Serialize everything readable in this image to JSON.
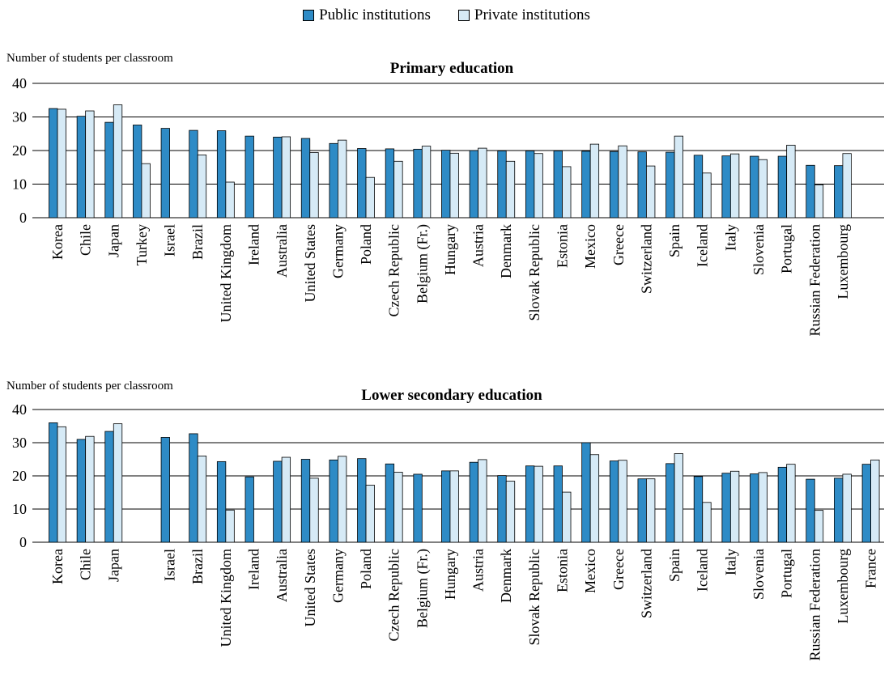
{
  "legend": {
    "public_label": "Public institutions",
    "private_label": "Private institutions"
  },
  "colors": {
    "public": "#2e8bc6",
    "private": "#d6eaf6",
    "stroke": "#000000"
  },
  "chart_data": [
    {
      "type": "bar",
      "title": "Primary education",
      "ylabel": "Number of students per classroom",
      "ylim": [
        0,
        40
      ],
      "yticks": [
        0,
        10,
        20,
        30,
        40
      ],
      "grid": true,
      "categories": [
        "Korea",
        "Chile",
        "Japan",
        "Turkey",
        "Israel",
        "Brazil",
        "United Kingdom",
        "Ireland",
        "Australia",
        "United States",
        "Germany",
        "Poland",
        "Czech Republic",
        "Belgium (Fr.)",
        "Hungary",
        "Austria",
        "Denmark",
        "Slovak Republic",
        "Estonia",
        "Mexico",
        "Greece",
        "Switzerland",
        "Spain",
        "Iceland",
        "Italy",
        "Slovenia",
        "Portugal",
        "Russian Federation",
        "Luxembourg"
      ],
      "series": [
        {
          "name": "Public institutions",
          "values": [
            32.5,
            30.2,
            28.4,
            27.6,
            26.6,
            26.0,
            25.9,
            24.3,
            24.0,
            23.6,
            22.1,
            20.6,
            20.5,
            20.4,
            20.1,
            20.0,
            19.9,
            19.9,
            19.9,
            19.8,
            19.7,
            19.6,
            19.5,
            18.6,
            18.4,
            18.3,
            18.3,
            15.6,
            15.5
          ]
        },
        {
          "name": "Private institutions",
          "values": [
            32.3,
            31.8,
            33.6,
            16.1,
            null,
            18.7,
            10.6,
            null,
            24.1,
            19.4,
            23.1,
            12.0,
            16.8,
            21.3,
            19.2,
            20.7,
            16.8,
            19.1,
            15.2,
            21.9,
            21.4,
            15.4,
            24.3,
            13.3,
            19.0,
            17.3,
            21.6,
            9.8,
            19.1
          ]
        }
      ]
    },
    {
      "type": "bar",
      "title": "Lower secondary education",
      "ylabel": "Number of students per classroom",
      "ylim": [
        0,
        40
      ],
      "yticks": [
        0,
        10,
        20,
        30,
        40
      ],
      "grid": true,
      "categories": [
        "Korea",
        "Chile",
        "Japan",
        "",
        "Israel",
        "Brazil",
        "United Kingdom",
        "Ireland",
        "Australia",
        "United States",
        "Germany",
        "Poland",
        "Czech Republic",
        "Belgium (Fr.)",
        "Hungary",
        "Austria",
        "Denmark",
        "Slovak Republic",
        "Estonia",
        "Mexico",
        "Greece",
        "Switzerland",
        "Spain",
        "Iceland",
        "Italy",
        "Slovenia",
        "Portugal",
        "Russian Federation",
        "Luxembourg",
        "France"
      ],
      "series": [
        {
          "name": "Public institutions",
          "values": [
            36.0,
            31.0,
            33.4,
            null,
            31.6,
            32.7,
            24.3,
            19.7,
            24.4,
            25.0,
            24.8,
            25.2,
            23.6,
            20.5,
            21.5,
            24.1,
            20.1,
            23.0,
            23.0,
            30.0,
            24.5,
            19.1,
            23.7,
            19.8,
            20.8,
            20.6,
            22.6,
            19.0,
            19.3,
            23.5
          ]
        },
        {
          "name": "Private institutions",
          "values": [
            34.8,
            31.9,
            35.7,
            null,
            null,
            26.0,
            9.7,
            null,
            25.6,
            19.3,
            25.9,
            17.2,
            21.1,
            null,
            21.5,
            24.9,
            18.4,
            22.9,
            15.1,
            26.4,
            24.7,
            19.1,
            26.7,
            12.0,
            21.4,
            21.0,
            23.5,
            9.6,
            20.5,
            24.8
          ]
        }
      ]
    }
  ]
}
